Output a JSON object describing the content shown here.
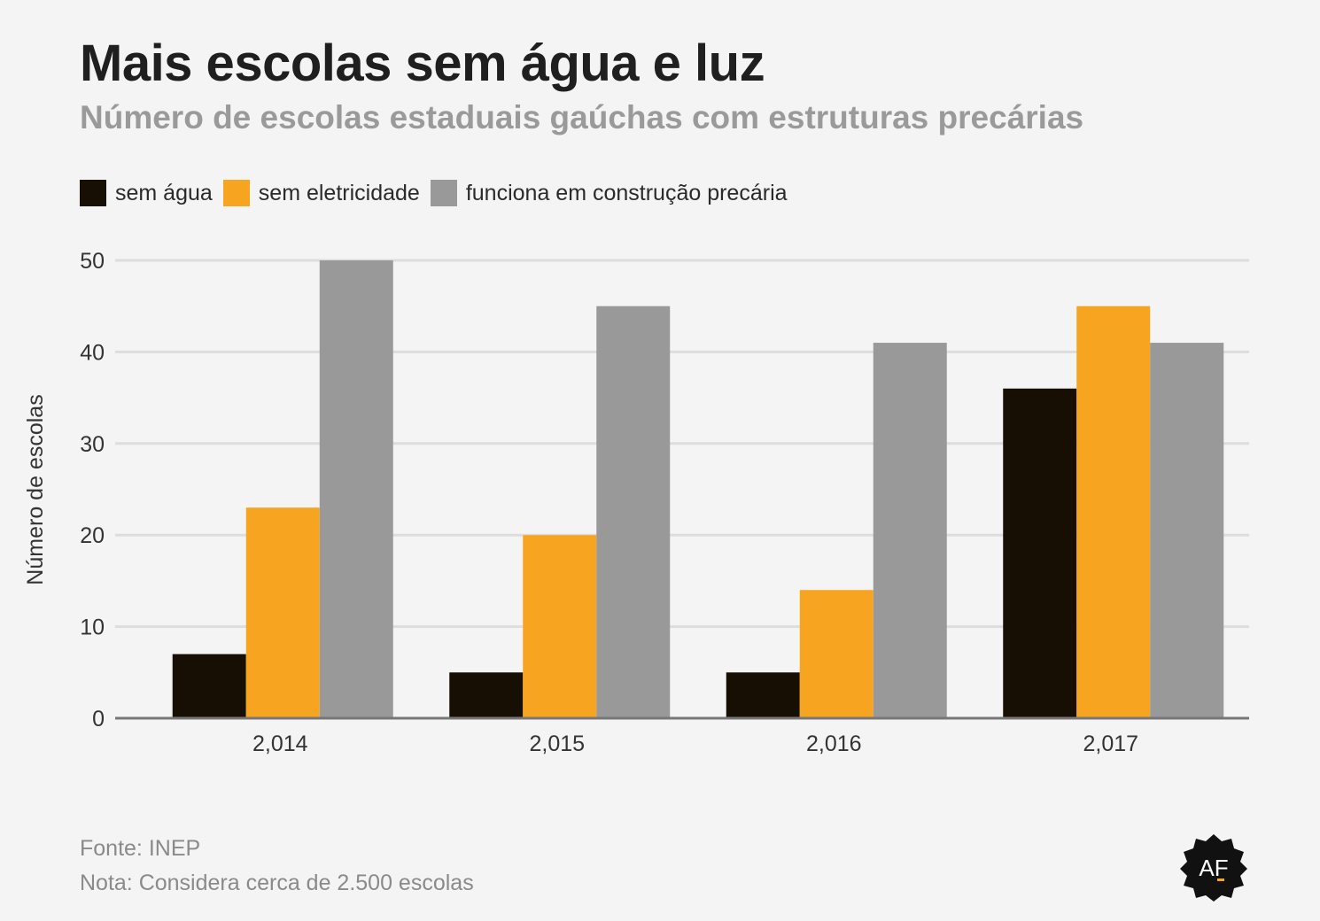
{
  "title": "Mais escolas sem água e luz",
  "subtitle": "Número de escolas estaduais gaúchas com estruturas precárias",
  "source": "Fonte: INEP",
  "note": "Nota: Considera cerca de 2.500 escolas",
  "logo_text": "AF",
  "chart_data": {
    "type": "bar",
    "title": "Mais escolas sem água e luz",
    "subtitle": "Número de escolas estaduais gaúchas com estruturas precárias",
    "xlabel": "",
    "ylabel": "Número de escolas",
    "categories": [
      "2,014",
      "2,015",
      "2,016",
      "2,017"
    ],
    "series": [
      {
        "name": "sem água",
        "color": "#170f04",
        "values": [
          7,
          5,
          5,
          36
        ]
      },
      {
        "name": "sem eletricidade",
        "color": "#f7a520",
        "values": [
          23,
          20,
          14,
          45
        ]
      },
      {
        "name": "funciona em construção precária",
        "color": "#999999",
        "values": [
          50,
          45,
          41,
          41
        ]
      }
    ],
    "ylim": [
      0,
      50
    ],
    "yticks": [
      0,
      10,
      20,
      30,
      40,
      50
    ],
    "grid": true,
    "legend_position": "top-left"
  }
}
